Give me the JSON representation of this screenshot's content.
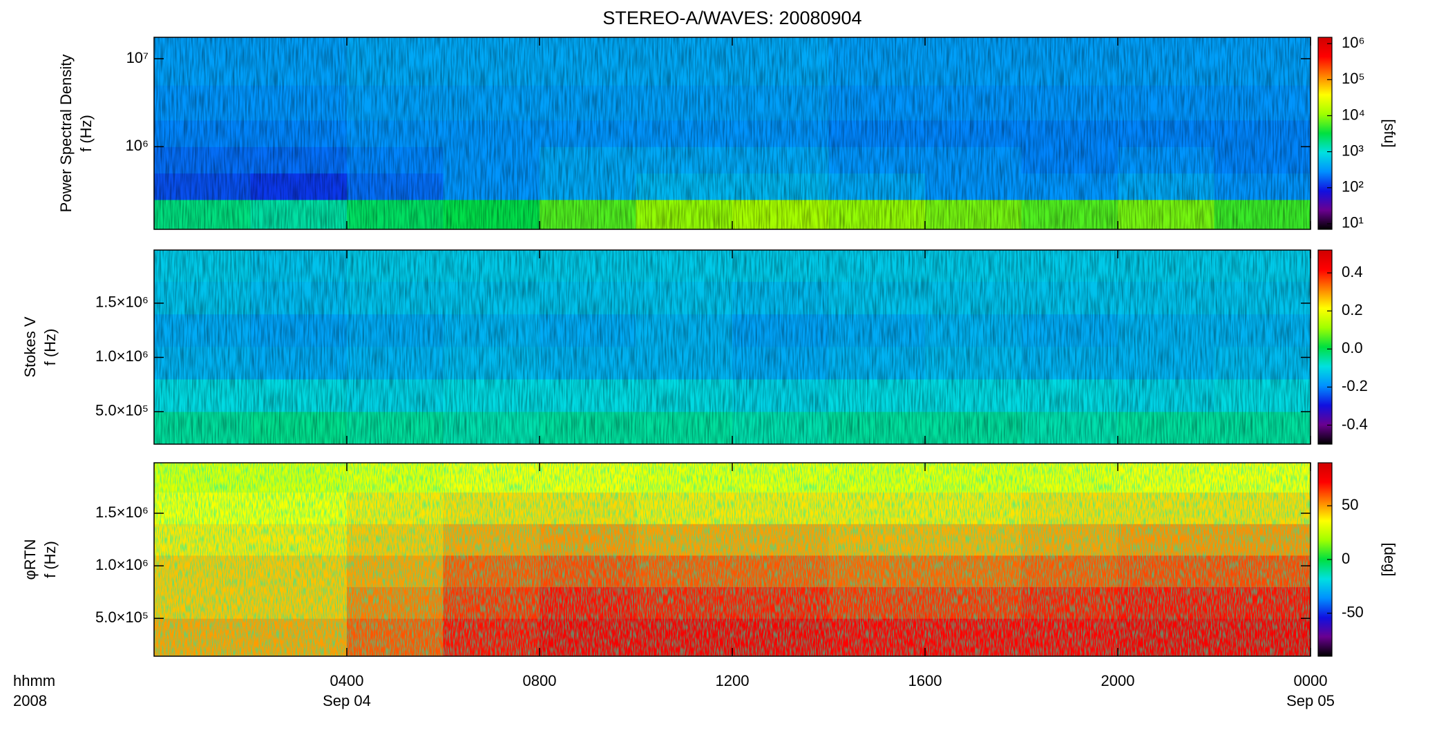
{
  "chart_data": [
    {
      "type": "heatmap",
      "title": "STEREO-A/WAVES: 20080904",
      "ylabel": [
        "Power Spectral Density",
        "f (Hz)"
      ],
      "ylog": true,
      "ylim": [
        115000,
        17500000
      ],
      "yticks": [
        {
          "value": 1000000,
          "label": "10⁶"
        },
        {
          "value": 10000000,
          "label": "10⁷"
        }
      ],
      "x_bins": [
        0,
        2,
        4,
        6,
        8,
        10,
        12,
        14,
        16,
        18,
        20,
        22,
        24
      ],
      "y_bins": [
        115000,
        250000,
        500000,
        1000000,
        2000000,
        5000000,
        17500000
      ],
      "values": [
        [
          2000,
          1500,
          2500,
          3000,
          6000,
          10000,
          12000,
          10000,
          8000,
          6000,
          8000,
          5000
        ],
        [
          150,
          120,
          200,
          300,
          400,
          500,
          500,
          400,
          300,
          300,
          400,
          300
        ],
        [
          200,
          200,
          250,
          300,
          400,
          400,
          400,
          300,
          300,
          250,
          300,
          250
        ],
        [
          250,
          250,
          300,
          300,
          300,
          300,
          300,
          250,
          250,
          250,
          250,
          250
        ],
        [
          300,
          300,
          350,
          350,
          350,
          350,
          350,
          300,
          300,
          300,
          300,
          300
        ],
        [
          350,
          350,
          400,
          400,
          400,
          400,
          400,
          350,
          350,
          350,
          350,
          350
        ]
      ],
      "zlog": true,
      "zlim": [
        7,
        1500000
      ],
      "zticks": [
        {
          "value": 10,
          "label": "10¹"
        },
        {
          "value": 100,
          "label": "10²"
        },
        {
          "value": 1000,
          "label": "10³"
        },
        {
          "value": 10000,
          "label": "10⁴"
        },
        {
          "value": 100000,
          "label": "10⁵"
        },
        {
          "value": 1000000,
          "label": "10⁶"
        }
      ],
      "colorbar_label": "[sfu]",
      "colormap": [
        "#000000",
        "#6a0090",
        "#1010e0",
        "#0090ff",
        "#00e0e0",
        "#00e040",
        "#a0ff00",
        "#ffff00",
        "#ff8000",
        "#ff0000",
        "#d00000"
      ]
    },
    {
      "type": "heatmap",
      "ylabel": [
        "Stokes V",
        "f (Hz)"
      ],
      "ylog": false,
      "ylim": [
        200000,
        1990000
      ],
      "yticks": [
        {
          "value": 500000,
          "label": "5.0×10⁵"
        },
        {
          "value": 1000000,
          "label": "1.0×10⁶"
        },
        {
          "value": 1500000,
          "label": "1.5×10⁶"
        }
      ],
      "x_bins": [
        0,
        2,
        4,
        6,
        8,
        10,
        12,
        14,
        16,
        18,
        20,
        22,
        24
      ],
      "y_bins": [
        200000,
        500000,
        800000,
        1100000,
        1400000,
        1700000,
        1990000
      ],
      "values": [
        [
          -0.05,
          -0.04,
          -0.05,
          -0.06,
          -0.05,
          -0.05,
          -0.06,
          -0.05,
          -0.05,
          -0.06,
          -0.05,
          -0.05
        ],
        [
          -0.1,
          -0.1,
          -0.11,
          -0.1,
          -0.1,
          -0.1,
          -0.11,
          -0.1,
          -0.1,
          -0.1,
          -0.11,
          -0.1
        ],
        [
          -0.15,
          -0.16,
          -0.15,
          -0.14,
          -0.15,
          -0.15,
          -0.16,
          -0.15,
          -0.14,
          -0.15,
          -0.15,
          -0.14
        ],
        [
          -0.16,
          -0.17,
          -0.16,
          -0.15,
          -0.16,
          -0.15,
          -0.17,
          -0.16,
          -0.15,
          -0.16,
          -0.15,
          -0.15
        ],
        [
          -0.13,
          -0.14,
          -0.13,
          -0.13,
          -0.13,
          -0.13,
          -0.14,
          -0.13,
          -0.13,
          -0.13,
          -0.13,
          -0.13
        ],
        [
          -0.12,
          -0.13,
          -0.12,
          -0.12,
          -0.12,
          -0.12,
          -0.12,
          -0.12,
          -0.12,
          -0.12,
          -0.12,
          -0.12
        ]
      ],
      "zlog": false,
      "zlim": [
        -0.5,
        0.52
      ],
      "zticks": [
        -0.4,
        -0.2,
        {
          "value": 0,
          "label": "0.0"
        },
        0.2,
        0.4
      ],
      "colormap": [
        "#000000",
        "#6a0090",
        "#1010e0",
        "#0090ff",
        "#00e0e0",
        "#00e040",
        "#a0ff00",
        "#ffff00",
        "#ff8000",
        "#ff0000",
        "#d00000"
      ]
    },
    {
      "type": "heatmap",
      "ylabel": [
        "φRTN",
        "f (Hz)"
      ],
      "ylog": false,
      "ylim": [
        140000,
        1980000
      ],
      "yticks": [
        {
          "value": 500000,
          "label": "5.0×10⁵"
        },
        {
          "value": 1000000,
          "label": "1.0×10⁶"
        },
        {
          "value": 1500000,
          "label": "1.5×10⁶"
        }
      ],
      "x_bins": [
        0,
        2,
        4,
        6,
        8,
        10,
        12,
        14,
        16,
        18,
        20,
        22,
        24
      ],
      "y_bins": [
        140000,
        500000,
        800000,
        1100000,
        1400000,
        1700000,
        1980000
      ],
      "values": [
        [
          50,
          50,
          60,
          70,
          75,
          75,
          75,
          72,
          72,
          72,
          75,
          75
        ],
        [
          45,
          45,
          55,
          65,
          70,
          68,
          68,
          65,
          65,
          68,
          70,
          70
        ],
        [
          45,
          45,
          50,
          60,
          62,
          60,
          60,
          58,
          58,
          60,
          62,
          62
        ],
        [
          40,
          40,
          45,
          50,
          52,
          50,
          50,
          48,
          48,
          50,
          52,
          52
        ],
        [
          35,
          35,
          40,
          42,
          42,
          40,
          40,
          40,
          40,
          42,
          42,
          42
        ],
        [
          30,
          30,
          32,
          35,
          35,
          33,
          33,
          32,
          32,
          33,
          35,
          35
        ]
      ],
      "zlog": false,
      "zlim": [
        -90,
        90
      ],
      "zticks": [
        -50,
        0,
        50
      ],
      "colorbar_label": "[deg]",
      "colormap": [
        "#000000",
        "#6a0090",
        "#1010e0",
        "#0090ff",
        "#00e0e0",
        "#00e040",
        "#a0ff00",
        "#ffff00",
        "#ff8000",
        "#ff0000",
        "#d00000"
      ],
      "xlim": [
        0,
        24
      ],
      "xticks": [
        {
          "value": 4,
          "label": "0400"
        },
        {
          "value": 8,
          "label": "0800"
        },
        {
          "value": 12,
          "label": "1200"
        },
        {
          "value": 16,
          "label": "1600"
        },
        {
          "value": 20,
          "label": "2000"
        },
        {
          "value": 24,
          "label": "0000"
        }
      ],
      "xtick_dates": [
        {
          "value": 4,
          "label": "Sep 04"
        },
        {
          "value": 24,
          "label": "Sep 05"
        }
      ],
      "xlabel": [
        "hhmm",
        "2008"
      ]
    }
  ]
}
